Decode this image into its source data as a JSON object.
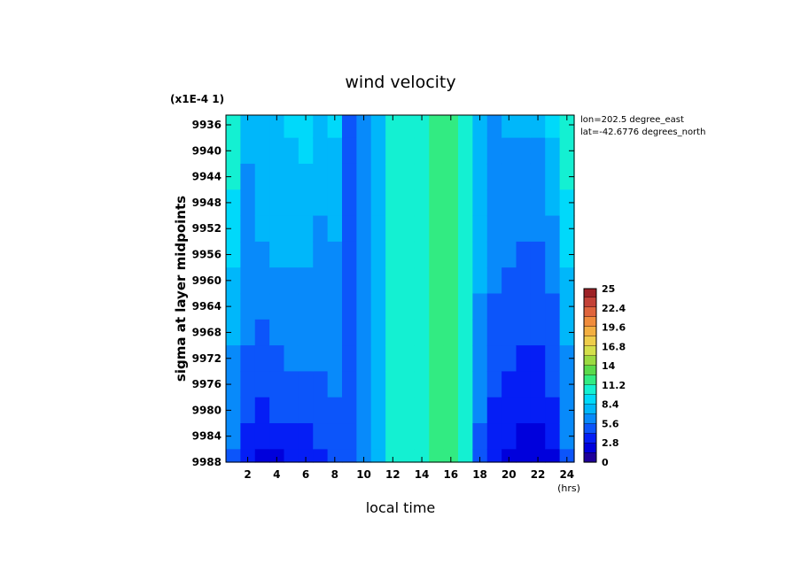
{
  "chart_data": {
    "type": "heatmap",
    "title": "wind velocity",
    "scale_note": "(x1E-4 1)",
    "xlabel": "local time",
    "xunit": "(hrs)",
    "ylabel": "sigma at layer midpoints",
    "xlim": [
      0.5,
      24.5
    ],
    "ylim": [
      9988,
      9934.5
    ],
    "x_ticks": [
      2,
      4,
      6,
      8,
      10,
      12,
      14,
      16,
      18,
      20,
      22,
      24
    ],
    "x_tick_labels": [
      "2",
      "4",
      "6",
      "8",
      "10",
      "12",
      "14",
      "16",
      "18",
      "20",
      "22",
      "24"
    ],
    "y_ticks": [
      9936,
      9940,
      9944,
      9948,
      9952,
      9956,
      9960,
      9964,
      9968,
      9972,
      9976,
      9980,
      9984,
      9988
    ],
    "y_tick_labels": [
      "9936",
      "9940",
      "9944",
      "9948",
      "9952",
      "9956",
      "9960",
      "9964",
      "9968",
      "9972",
      "9976",
      "9980",
      "9984",
      "9988"
    ],
    "info": [
      "lon=202.5 degree_east",
      "lat=-42.6776 degrees_north"
    ],
    "colorbar": {
      "min": 0,
      "max": 25,
      "step": 1.4,
      "tick_labels": [
        "0",
        "2.8",
        "5.6",
        "8.4",
        "11.2",
        "14",
        "16.8",
        "19.6",
        "22.4",
        "25"
      ]
    },
    "hours": [
      1,
      2,
      3,
      4,
      5,
      6,
      7,
      8,
      9,
      10,
      11,
      12,
      13,
      14,
      15,
      16,
      17,
      18,
      19,
      20,
      21,
      22,
      23,
      24
    ],
    "levels": [
      9936,
      9940,
      9944,
      9948,
      9952,
      9956,
      9960,
      9964,
      9968,
      9972,
      9976,
      9980,
      9984,
      9988
    ],
    "values": [
      [
        10.8,
        7.0,
        7.6,
        7.8,
        8.4,
        8.8,
        7.6,
        8.6,
        4.6,
        6.4,
        7.4,
        10.2,
        10.6,
        10.8,
        11.2,
        11.2,
        10.6,
        8.2,
        6.4,
        7.0,
        7.2,
        7.2,
        8.4,
        10.8
      ],
      [
        10.4,
        7.0,
        7.6,
        7.8,
        8.0,
        8.4,
        7.4,
        8.2,
        4.6,
        6.4,
        7.4,
        10.2,
        10.6,
        10.8,
        11.2,
        11.2,
        10.4,
        8.0,
        6.4,
        6.6,
        6.8,
        6.8,
        8.0,
        10.4
      ],
      [
        9.8,
        6.9,
        7.5,
        7.6,
        7.8,
        8.0,
        7.2,
        7.8,
        4.6,
        6.4,
        7.4,
        10.2,
        10.6,
        10.8,
        11.2,
        11.2,
        10.4,
        7.8,
        6.3,
        6.3,
        6.5,
        6.3,
        7.4,
        9.8
      ],
      [
        9.2,
        6.8,
        7.2,
        7.4,
        7.6,
        7.8,
        7.0,
        7.4,
        4.6,
        6.4,
        7.4,
        10.2,
        10.6,
        10.8,
        11.2,
        11.2,
        10.4,
        7.6,
        6.2,
        6.1,
        6.2,
        6.0,
        7.0,
        9.2
      ],
      [
        8.8,
        6.6,
        7.0,
        7.2,
        7.4,
        7.6,
        6.8,
        7.1,
        4.6,
        6.4,
        7.4,
        10.2,
        10.6,
        10.8,
        11.2,
        11.2,
        10.4,
        7.4,
        6.0,
        5.9,
        5.9,
        5.7,
        6.6,
        8.8
      ],
      [
        8.4,
        6.4,
        6.8,
        7.0,
        7.1,
        7.1,
        6.6,
        6.9,
        4.6,
        6.4,
        7.4,
        10.2,
        10.6,
        10.8,
        11.2,
        11.2,
        10.4,
        7.2,
        5.8,
        5.6,
        5.5,
        5.3,
        6.2,
        8.4
      ],
      [
        8.0,
        6.2,
        6.5,
        6.6,
        6.8,
        6.8,
        6.4,
        6.7,
        4.6,
        6.4,
        7.4,
        10.2,
        10.6,
        10.8,
        11.2,
        11.2,
        10.4,
        7.0,
        5.6,
        5.3,
        5.2,
        5.0,
        5.8,
        8.0
      ],
      [
        7.6,
        6.0,
        5.9,
        6.2,
        6.5,
        6.6,
        6.2,
        6.5,
        4.6,
        6.4,
        7.4,
        10.2,
        10.6,
        10.8,
        11.2,
        11.2,
        10.4,
        6.8,
        5.4,
        5.0,
        4.8,
        4.6,
        5.4,
        7.6
      ],
      [
        7.2,
        5.7,
        5.4,
        5.8,
        6.2,
        6.3,
        6.0,
        6.3,
        4.6,
        6.4,
        7.4,
        10.2,
        10.6,
        10.8,
        11.2,
        11.2,
        10.4,
        6.6,
        5.1,
        4.6,
        4.4,
        4.2,
        5.0,
        7.2
      ],
      [
        6.8,
        5.3,
        4.9,
        5.3,
        5.8,
        5.9,
        5.7,
        6.1,
        4.6,
        6.4,
        7.4,
        10.2,
        10.6,
        10.8,
        11.2,
        11.2,
        10.4,
        6.3,
        4.8,
        4.2,
        4.0,
        3.8,
        4.6,
        6.8
      ],
      [
        6.4,
        4.9,
        4.4,
        4.8,
        5.2,
        5.4,
        5.3,
        5.8,
        4.6,
        6.4,
        7.4,
        10.2,
        10.6,
        10.8,
        11.2,
        11.2,
        10.4,
        6.0,
        4.4,
        3.8,
        3.6,
        3.4,
        4.2,
        6.4
      ],
      [
        6.0,
        4.4,
        3.8,
        4.2,
        4.6,
        4.8,
        4.8,
        5.4,
        4.6,
        6.4,
        7.4,
        10.2,
        10.6,
        10.8,
        11.2,
        11.2,
        10.4,
        5.6,
        4.0,
        3.3,
        3.1,
        2.9,
        3.7,
        6.0
      ],
      [
        5.6,
        3.8,
        2.8,
        3.4,
        3.8,
        4.0,
        4.2,
        5.0,
        4.6,
        6.4,
        7.4,
        10.2,
        10.6,
        10.8,
        11.2,
        11.2,
        10.4,
        5.2,
        3.4,
        2.8,
        2.6,
        2.4,
        3.2,
        5.6
      ],
      [
        5.0,
        3.0,
        2.2,
        2.6,
        3.0,
        3.0,
        3.4,
        4.4,
        4.6,
        6.4,
        7.4,
        10.2,
        10.6,
        10.8,
        11.2,
        11.2,
        10.4,
        4.8,
        2.8,
        2.2,
        2.0,
        1.8,
        2.6,
        5.0
      ]
    ]
  }
}
